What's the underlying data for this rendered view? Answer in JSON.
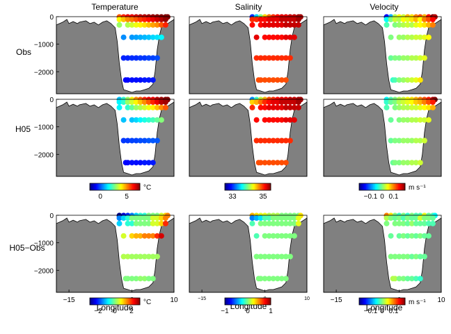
{
  "figure": {
    "panels": [
      {
        "row": 0,
        "col": 0,
        "field": "temperature",
        "kind": "obs"
      },
      {
        "row": 0,
        "col": 1,
        "field": "salinity",
        "kind": "obs"
      },
      {
        "row": 0,
        "col": 2,
        "field": "velocity",
        "kind": "obs"
      },
      {
        "row": 1,
        "col": 0,
        "field": "temperature",
        "kind": "model"
      },
      {
        "row": 1,
        "col": 1,
        "field": "salinity",
        "kind": "model"
      },
      {
        "row": 1,
        "col": 2,
        "field": "velocity",
        "kind": "model"
      },
      {
        "row": 2,
        "col": 0,
        "field": "temperature",
        "kind": "diff"
      },
      {
        "row": 2,
        "col": 1,
        "field": "salinity",
        "kind": "diff"
      },
      {
        "row": 2,
        "col": 2,
        "field": "velocity",
        "kind": "diff"
      }
    ],
    "column_titles": [
      "Temperature",
      "Salinity",
      "Velocity"
    ],
    "row_labels": [
      "Obs",
      "H05",
      "H05−Obs"
    ],
    "xlabel": "Longitude",
    "colorbars": {
      "temperature": {
        "unit": "°C",
        "ticks": [
          "0",
          "5"
        ],
        "tick_values": [
          0,
          5
        ],
        "range": [
          -2,
          7.5
        ]
      },
      "salinity": {
        "unit": "",
        "ticks": [
          "33",
          "35"
        ],
        "tick_values": [
          33,
          35
        ],
        "range": [
          32.5,
          35.5
        ]
      },
      "velocity": {
        "unit": "m s⁻¹",
        "ticks": [
          "−0.1",
          "0",
          "0.1"
        ],
        "tick_values": [
          -0.1,
          0,
          0.1
        ],
        "range": [
          -0.2,
          0.2
        ]
      },
      "temperature_diff": {
        "unit": "°C",
        "ticks": [
          "−2",
          "0",
          "2"
        ],
        "tick_values": [
          -2,
          0,
          2
        ],
        "range": [
          -3,
          3
        ]
      },
      "salinity_diff": {
        "unit": "",
        "ticks": [
          "−1",
          "0",
          "1"
        ],
        "tick_values": [
          -1,
          0,
          1
        ],
        "range": [
          -1,
          1
        ]
      },
      "velocity_diff": {
        "unit": "m s⁻¹",
        "ticks": [
          "−0.1",
          "0",
          "0.1"
        ],
        "tick_values": [
          -0.1,
          0,
          0.1
        ],
        "range": [
          -0.2,
          0.2
        ]
      }
    },
    "colors": {
      "land": "#808080",
      "ocean": "#ffffff"
    }
  },
  "chart_data": {
    "type": "scatter",
    "xlabel": "Longitude",
    "ylabel": "",
    "xlim": [
      -18,
      10
    ],
    "ylim": [
      -2800,
      0
    ],
    "x_ticks": [
      -15,
      0,
      10
    ],
    "y_ticks": [
      0,
      -1000,
      -2000
    ],
    "x_tick_labels": [
      "−15",
      "0",
      "10"
    ],
    "y_tick_labels": [
      "0",
      "−1000",
      "−2000"
    ],
    "bathymetry": {
      "x": [
        -18,
        -16.5,
        -15.5,
        -15,
        -14,
        -13,
        -12.5,
        -11,
        -10,
        -9,
        -8,
        -7,
        -6,
        -5,
        -4,
        -3.5,
        -3,
        -2.5,
        -2,
        -1,
        0,
        1,
        2,
        3,
        4,
        5,
        5.5,
        6,
        6.5,
        7,
        8,
        9,
        10
      ],
      "depth": [
        300,
        200,
        100,
        250,
        180,
        250,
        200,
        150,
        250,
        200,
        300,
        200,
        150,
        250,
        400,
        900,
        1700,
        2300,
        2650,
        2700,
        2750,
        2700,
        2700,
        2650,
        2600,
        2450,
        2000,
        1200,
        700,
        400,
        300,
        200,
        100
      ]
    },
    "stations_x": [
      -3,
      -2,
      -1,
      0,
      1,
      2,
      3,
      4,
      5,
      6,
      7,
      8,
      8.5
    ],
    "levels": [
      {
        "depth": 10,
        "x": [
          -3,
          -2,
          -1,
          0,
          1,
          2,
          3,
          4,
          5,
          6,
          7,
          8,
          8.5
        ]
      },
      {
        "depth": 100,
        "x": [
          -3,
          -2,
          -1,
          0,
          1,
          2,
          3,
          4,
          5,
          6,
          7,
          8
        ]
      },
      {
        "depth": 300,
        "x": [
          -3,
          -1,
          0,
          1,
          2,
          3,
          4,
          5,
          6,
          7,
          8
        ]
      },
      {
        "depth": 750,
        "x": [
          -2,
          0,
          1,
          2,
          3,
          4,
          5,
          6,
          7
        ]
      },
      {
        "depth": 1500,
        "x": [
          -2,
          -1,
          0,
          1,
          2,
          3,
          4,
          5,
          6
        ]
      },
      {
        "depth": 2300,
        "x": [
          -1.5,
          -1,
          0,
          1,
          2,
          3,
          4,
          5
        ]
      }
    ],
    "series": [
      {
        "name": "Temperature",
        "kind": "obs",
        "colorbar": "temperature",
        "surface": [
          5.5,
          6,
          6.5,
          6.5,
          6.8,
          7,
          7,
          7.2,
          7.3,
          7.4,
          7.5,
          7.5,
          7.5
        ],
        "by_level": [
          [
            null
          ],
          [
            4,
            4.5,
            5,
            5.2,
            5.5,
            5.8,
            6,
            6.2,
            6.5,
            6.8,
            7,
            7.3
          ],
          [
            3,
            3.2,
            3.5,
            3.8,
            4,
            4.2,
            4.5,
            4.8,
            5,
            5.5,
            6
          ],
          [
            0.5,
            0.6,
            0.7,
            0.8,
            0.9,
            1,
            1.2,
            1.3,
            1.5
          ],
          [
            -0.5,
            -0.5,
            -0.4,
            -0.4,
            -0.3,
            -0.3,
            -0.2,
            -0.2,
            -0.1
          ],
          [
            -0.8,
            -0.8,
            -0.7,
            -0.7,
            -0.7,
            -0.6,
            -0.6,
            -0.6
          ]
        ]
      },
      {
        "name": "Salinity",
        "kind": "obs",
        "colorbar": "salinity",
        "surface": [
          33,
          33.5,
          34,
          34.5,
          34.8,
          35,
          35.1,
          35.2,
          35.2,
          35.3,
          35.3,
          35.4,
          35.4
        ],
        "by_level": [
          [
            null
          ],
          [
            35,
            35,
            35.1,
            35.1,
            35.2,
            35.2,
            35.2,
            35.3,
            35.3,
            35.3,
            35.3,
            35.4
          ],
          [
            35.1,
            35.1,
            35.2,
            35.2,
            35.2,
            35.2,
            35.2,
            35.3,
            35.3,
            35.3,
            35.3
          ],
          [
            35.2,
            35.1,
            35.1,
            35.1,
            35.1,
            35.1,
            35.2,
            35.2,
            35.2
          ],
          [
            35,
            35,
            35,
            35,
            35,
            35,
            35,
            35,
            35
          ],
          [
            34.9,
            34.9,
            34.9,
            34.9,
            34.9,
            34.9,
            34.9,
            34.9
          ]
        ]
      },
      {
        "name": "Velocity",
        "kind": "obs",
        "colorbar": "velocity",
        "surface": [
          -0.15,
          -0.08,
          0.02,
          0.05,
          0.03,
          0.08,
          0.06,
          0.1,
          0.12,
          0.08,
          0.15,
          0.2,
          0.18
        ],
        "by_level": [
          [
            null
          ],
          [
            -0.05,
            0,
            0.03,
            0.02,
            0.05,
            0.04,
            0.06,
            0.08,
            0.05,
            0.1,
            0.12,
            0.15
          ],
          [
            -0.02,
            0,
            0.01,
            0.02,
            0.03,
            0.02,
            0.04,
            0.05,
            0.06,
            0.08,
            0.1
          ],
          [
            0,
            0.01,
            0.01,
            0.02,
            0.02,
            0.03,
            0.03,
            0.04,
            0.05
          ],
          [
            -0.01,
            0,
            0,
            0.01,
            0.01,
            0.02,
            0.02,
            0.03,
            0.04
          ],
          [
            -0.03,
            -0.02,
            0,
            0.01,
            0.02,
            0.03,
            0.04,
            0.06
          ]
        ]
      },
      {
        "name": "Temperature",
        "kind": "model",
        "colorbar": "temperature",
        "surface": [
          1,
          2,
          3,
          4,
          5,
          5.5,
          6,
          6.5,
          6.5,
          7,
          7.2,
          7.5,
          7.5
        ],
        "by_level": [
          [
            null
          ],
          [
            1.5,
            2,
            3,
            3.5,
            4,
            4.5,
            5,
            5.5,
            6,
            6.5,
            7,
            7.2
          ],
          [
            1.5,
            2,
            2.5,
            3,
            3.2,
            3.5,
            3.8,
            4,
            4.5,
            5,
            5.5
          ],
          [
            1,
            1,
            1.2,
            1.5,
            1.8,
            2,
            2.2,
            2.5,
            2.8
          ],
          [
            -0.3,
            -0.3,
            -0.2,
            -0.2,
            -0.1,
            -0.1,
            0,
            0,
            0
          ],
          [
            -0.8,
            -0.8,
            -0.7,
            -0.7,
            -0.7,
            -0.6,
            -0.6,
            -0.6
          ]
        ]
      },
      {
        "name": "Salinity",
        "kind": "model",
        "colorbar": "salinity",
        "surface": [
          33.3,
          33.8,
          34.2,
          34.6,
          34.9,
          35,
          35.1,
          35.2,
          35.2,
          35.3,
          35.3,
          35.4,
          35.4
        ],
        "by_level": [
          [
            null
          ],
          [
            34.5,
            34.6,
            34.8,
            35,
            35.1,
            35.2,
            35.2,
            35.3,
            35.3,
            35.3,
            35.3,
            35.4
          ],
          [
            35,
            35.1,
            35.1,
            35.2,
            35.2,
            35.2,
            35.2,
            35.3,
            35.3,
            35.3,
            35.3
          ],
          [
            35.1,
            35.1,
            35.1,
            35.1,
            35.1,
            35.1,
            35.2,
            35.2,
            35.2
          ],
          [
            35,
            35,
            35,
            35,
            35,
            35,
            35,
            35,
            35
          ],
          [
            34.9,
            34.9,
            34.9,
            34.9,
            34.9,
            34.9,
            34.9,
            34.9
          ]
        ]
      },
      {
        "name": "Velocity",
        "kind": "model",
        "colorbar": "velocity",
        "surface": [
          -0.05,
          -0.02,
          0,
          0.02,
          0.03,
          0.05,
          0.06,
          0.08,
          0.1,
          0.12,
          0.14,
          0.18,
          0.2
        ],
        "by_level": [
          [
            null
          ],
          [
            -0.03,
            -0.01,
            0,
            0.02,
            0.03,
            0.04,
            0.05,
            0.07,
            0.08,
            0.1,
            0.12,
            0.14
          ],
          [
            -0.02,
            0,
            0.01,
            0.02,
            0.02,
            0.03,
            0.03,
            0.04,
            0.05,
            0.06,
            0.08
          ],
          [
            -0.01,
            0,
            0.01,
            0.01,
            0.02,
            0.02,
            0.03,
            0.03,
            0.04
          ],
          [
            -0.01,
            0,
            0,
            0.01,
            0.01,
            0.01,
            0.02,
            0.02,
            0.03
          ],
          [
            -0.01,
            0,
            0,
            0.01,
            0.01,
            0.02,
            0.02,
            0.03
          ]
        ]
      },
      {
        "name": "Temperature",
        "kind": "diff",
        "colorbar": "temperature_diff",
        "surface": [
          -3,
          -2.5,
          -2,
          -1.5,
          -1,
          -0.5,
          -0.5,
          0,
          0,
          0,
          0.5,
          1,
          1.5
        ],
        "by_level": [
          [
            null
          ],
          [
            -1.5,
            -1,
            -0.5,
            0,
            0,
            0,
            0,
            0,
            0.5,
            0.5,
            1,
            1.5
          ],
          [
            -1,
            -0.5,
            -0.5,
            0,
            0,
            0,
            0,
            0.5,
            0.5,
            1,
            2
          ],
          [
            0.5,
            1,
            1.2,
            1.2,
            1.5,
            1.5,
            1.5,
            2,
            2.5
          ],
          [
            0.3,
            0.3,
            0.2,
            0.2,
            0.2,
            0.2,
            0.2,
            0.2,
            0.2
          ],
          [
            0,
            0,
            0,
            0,
            0.1,
            0.1,
            0,
            0
          ]
        ]
      },
      {
        "name": "Salinity",
        "kind": "diff",
        "colorbar": "salinity_diff",
        "surface": [
          0.4,
          0.3,
          0.2,
          0.2,
          0.1,
          0.1,
          0.1,
          0,
          0,
          0,
          0,
          0,
          0.3
        ],
        "by_level": [
          [
            null
          ],
          [
            -0.5,
            -0.4,
            -0.3,
            -0.1,
            -0.1,
            0,
            0,
            0,
            0,
            0,
            0,
            0.2
          ],
          [
            -0.1,
            0,
            0,
            0,
            0,
            0,
            0,
            0,
            0,
            0,
            0.2
          ],
          [
            -0.1,
            0,
            0,
            0,
            0,
            0,
            0,
            0,
            0
          ],
          [
            0,
            0,
            0,
            0,
            0,
            0,
            0,
            0,
            0
          ],
          [
            0,
            0,
            0,
            0,
            0,
            0,
            0,
            0
          ]
        ]
      },
      {
        "name": "Velocity",
        "kind": "diff",
        "colorbar": "velocity_diff",
        "surface": [
          0.1,
          0.06,
          0,
          -0.03,
          0,
          -0.03,
          0,
          -0.02,
          -0.02,
          0.04,
          -0.01,
          -0.02,
          -0.05
        ],
        "by_level": [
          [
            null
          ],
          [
            0.02,
            0,
            -0.01,
            0,
            -0.02,
            0,
            -0.01,
            -0.01,
            0.03,
            0,
            0,
            -0.01
          ],
          [
            0,
            0,
            0,
            0,
            -0.01,
            0.01,
            -0.01,
            -0.01,
            -0.01,
            -0.02,
            -0.02
          ],
          [
            -0.01,
            -0.01,
            0,
            -0.01,
            0,
            -0.01,
            0,
            -0.01,
            -0.01
          ],
          [
            0,
            0,
            0,
            0,
            0,
            -0.01,
            0,
            -0.01,
            -0.01
          ],
          [
            0.02,
            0.02,
            0,
            0,
            -0.01,
            -0.01,
            -0.02,
            -0.03
          ]
        ]
      }
    ]
  }
}
